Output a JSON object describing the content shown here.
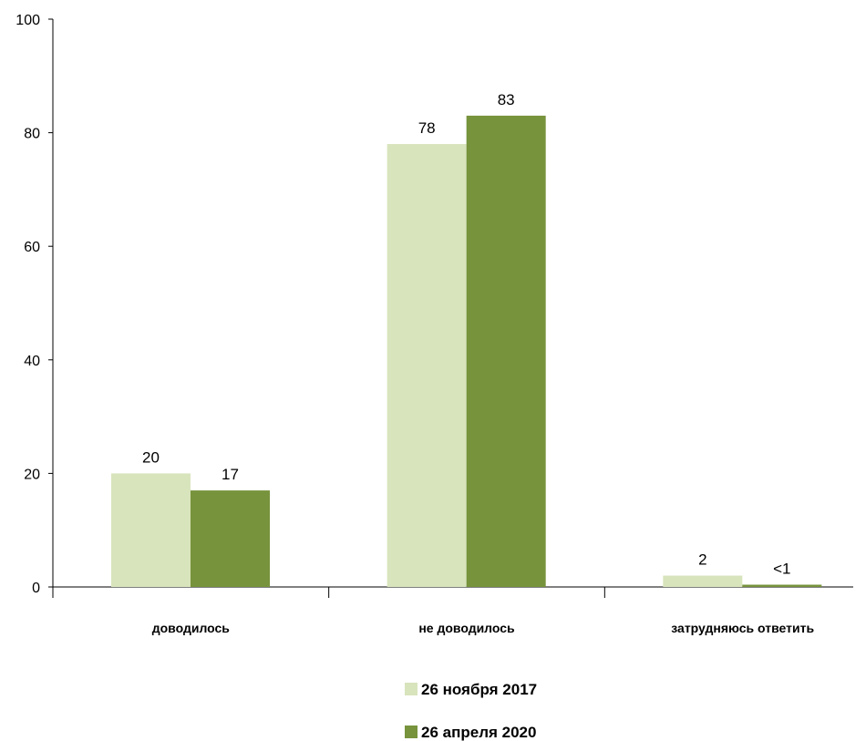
{
  "chart_data": {
    "type": "bar",
    "categories": [
      "доводилось",
      "не доводилось",
      "затрудняюсь ответить"
    ],
    "series": [
      {
        "name": "26 ноября 2017",
        "values": [
          20,
          78,
          2
        ],
        "labels": [
          "20",
          "78",
          "2"
        ],
        "color": "#d8e4bc"
      },
      {
        "name": "26 апреля 2020",
        "values": [
          17,
          83,
          0.4
        ],
        "labels": [
          "17",
          "83",
          "<1"
        ],
        "color": "#77933c"
      }
    ],
    "ylim": [
      0,
      100
    ],
    "yticks": [
      0,
      20,
      40,
      60,
      80,
      100
    ],
    "grid": false,
    "legend_position": "bottom"
  }
}
